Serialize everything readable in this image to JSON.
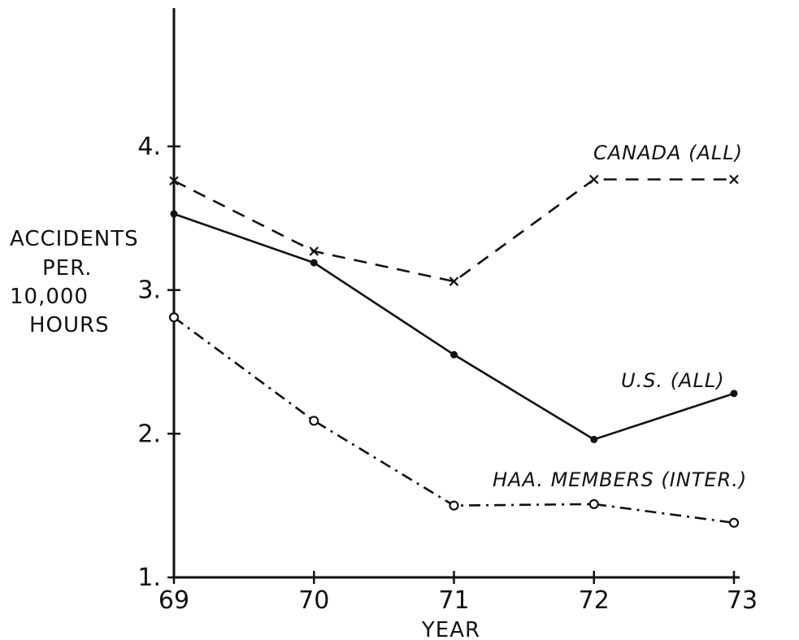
{
  "chart_data": {
    "type": "line",
    "x": [
      "69",
      "70",
      "71",
      "72",
      "73"
    ],
    "ylabel": [
      "ACCIDENTS",
      "PER.",
      "10,000",
      "HOURS"
    ],
    "xlabel": "YEAR",
    "ylim": [
      1,
      4
    ],
    "y_ticks": [
      "1.",
      "2.",
      "3.",
      "4."
    ],
    "grid": false,
    "series": [
      {
        "name": "CANADA (ALL)",
        "style": "dashed",
        "marker": "x",
        "values": [
          3.76,
          3.27,
          3.06,
          3.77,
          3.77
        ]
      },
      {
        "name": "U.S. (ALL)",
        "style": "solid",
        "marker": "dot",
        "values": [
          3.53,
          3.19,
          2.55,
          1.96,
          2.28
        ]
      },
      {
        "name": "HAA. MEMBERS (INTER.)",
        "style": "dashdot",
        "marker": "circle",
        "values": [
          2.81,
          2.09,
          1.5,
          1.51,
          1.38
        ]
      }
    ]
  }
}
